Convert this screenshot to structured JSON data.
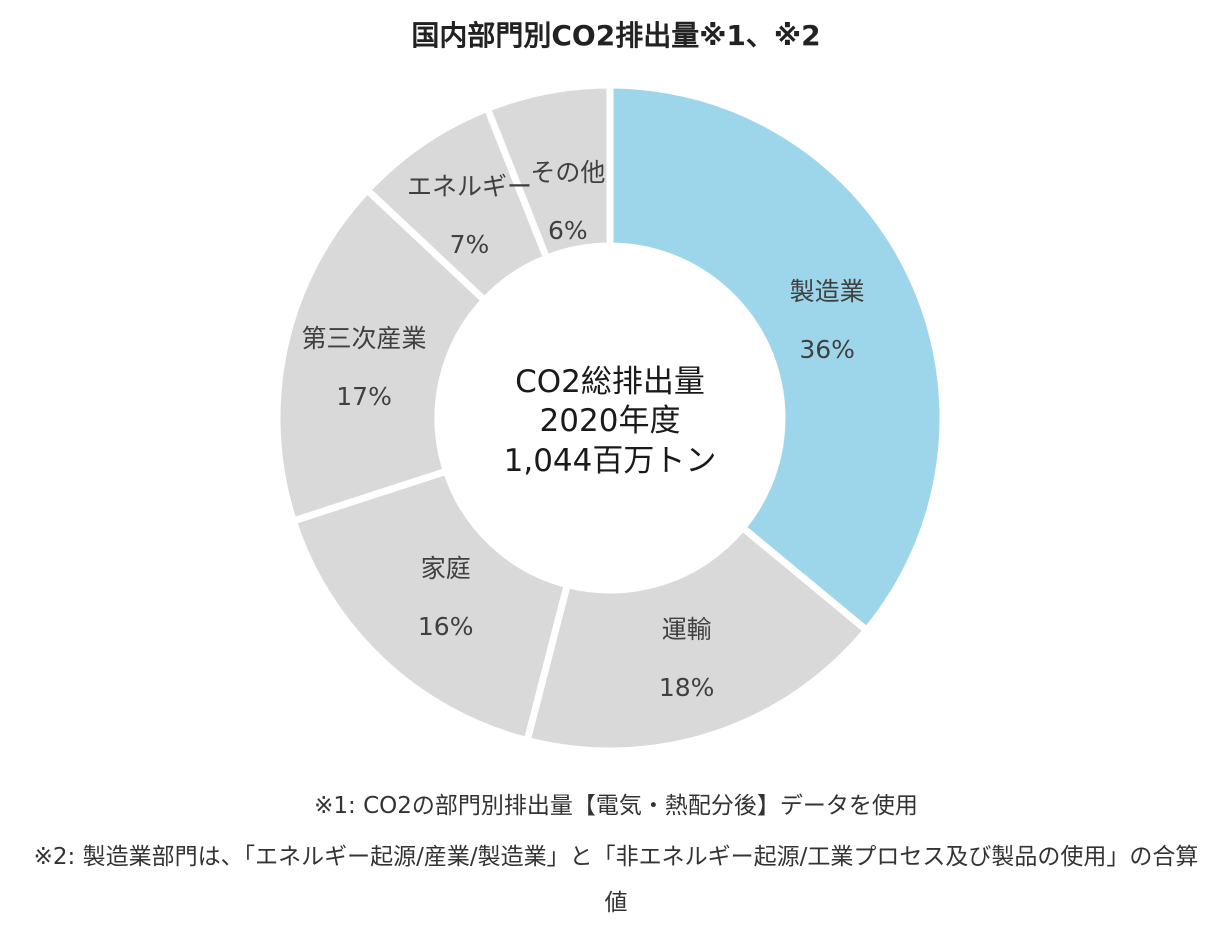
{
  "title": "国内部門別CO2排出量※1、※2",
  "center": {
    "line1": "CO2総排出量",
    "line2": "2020年度",
    "line3": "1,044百万トン"
  },
  "notes": {
    "note1": "※1: CO2の部門別排出量【電気・熱配分後】データを使用",
    "note2": "※2: 製造業部門は、「エネルギー起源/産業/製造業」と「非エネルギー起源/工業プロセス及び製品の使用」の合算値"
  },
  "chart_data": {
    "type": "pie",
    "donut": true,
    "title": "国内部門別CO2排出量※1、※2",
    "categories": [
      "製造業",
      "運輸",
      "家庭",
      "第三次産業",
      "エネルギー",
      "その他"
    ],
    "values": [
      36,
      18,
      16,
      17,
      7,
      6
    ],
    "value_labels": [
      "36%",
      "18%",
      "16%",
      "17%",
      "7%",
      "6%"
    ],
    "colors": [
      "#9dd6ea",
      "#d9d9d9",
      "#d9d9d9",
      "#d9d9d9",
      "#d9d9d9",
      "#d9d9d9"
    ],
    "unit": "%"
  }
}
